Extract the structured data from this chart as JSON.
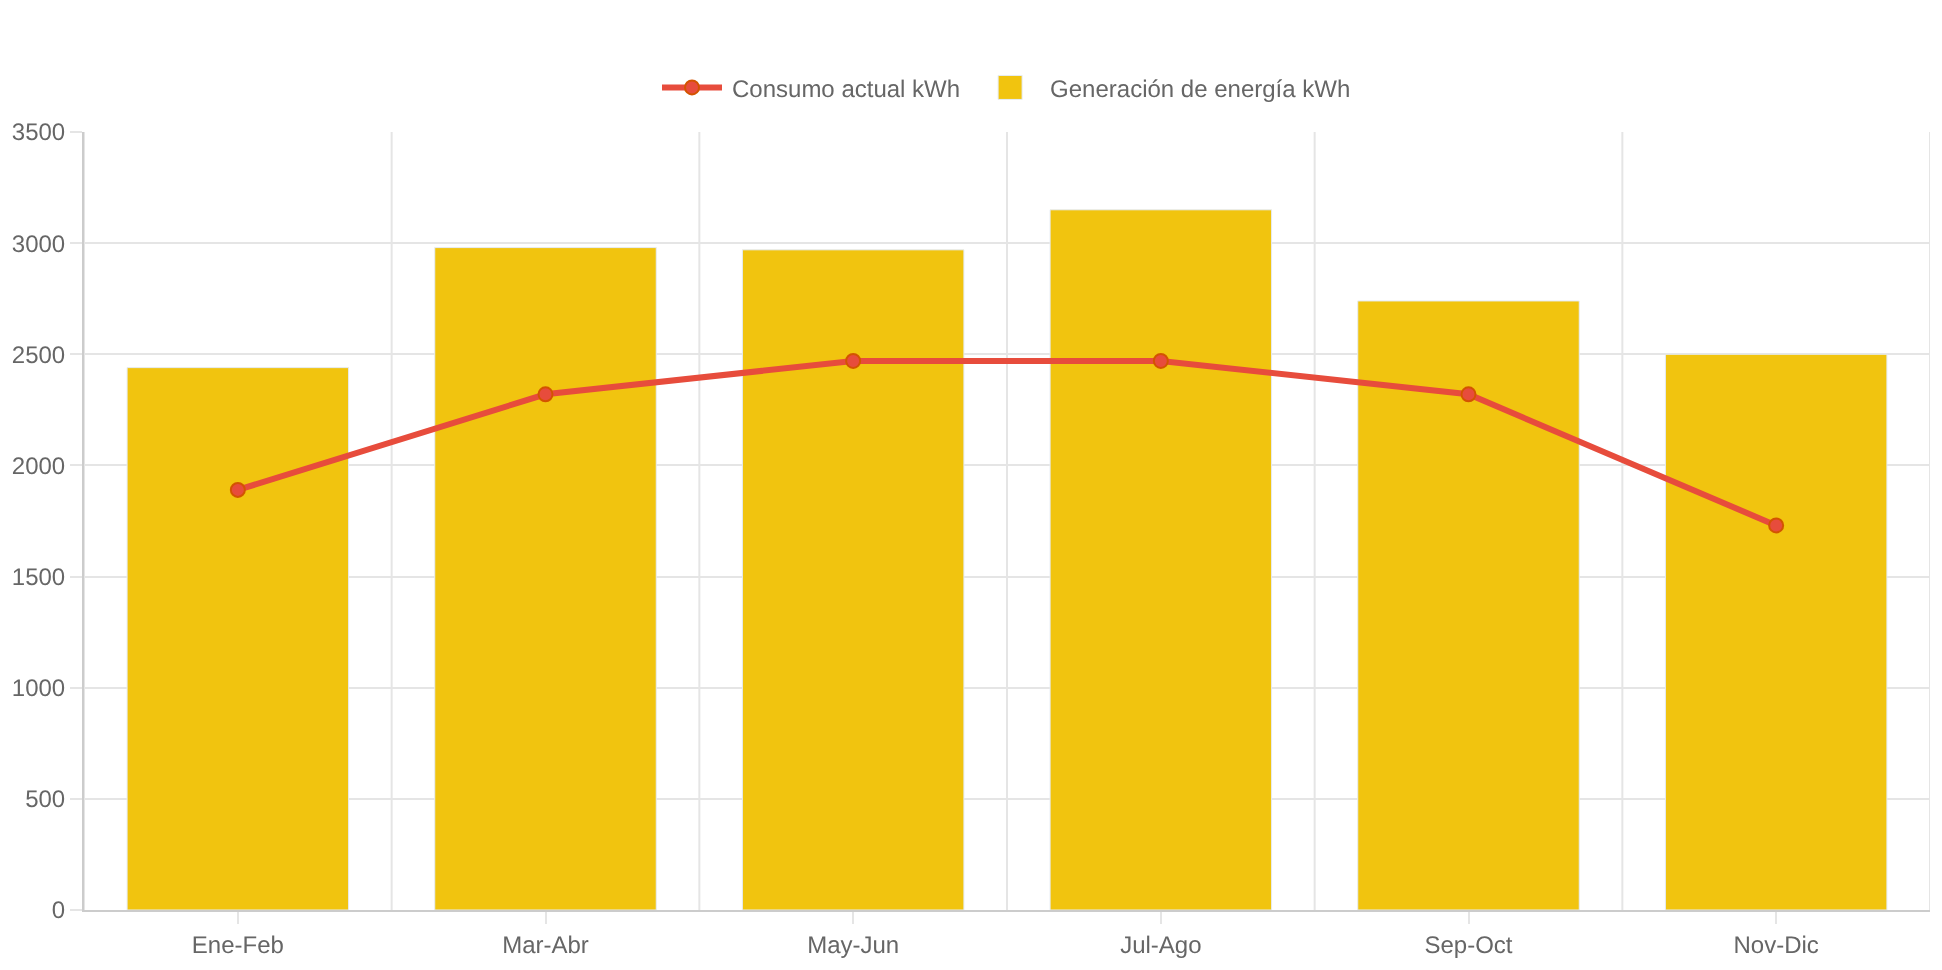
{
  "chart_data": {
    "type": "bar",
    "categories": [
      "Ene-Feb",
      "Mar-Abr",
      "May-Jun",
      "Jul-Ago",
      "Sep-Oct",
      "Nov-Dic"
    ],
    "series": [
      {
        "name": "Consumo actual kWh",
        "type": "line",
        "color": "#e74c3c",
        "values": [
          1890,
          2320,
          2470,
          2470,
          2320,
          1730
        ]
      },
      {
        "name": "Generación de energía kWh",
        "color": "#f1c40f",
        "values": [
          2440,
          2980,
          2970,
          3150,
          2740,
          2500
        ]
      }
    ],
    "ylim": [
      0,
      3500
    ],
    "yticks": [
      0,
      500,
      1000,
      1500,
      2000,
      2500,
      3000,
      3500
    ],
    "grid": true,
    "legend": "top",
    "marker": "circle",
    "line_style": "solid"
  }
}
